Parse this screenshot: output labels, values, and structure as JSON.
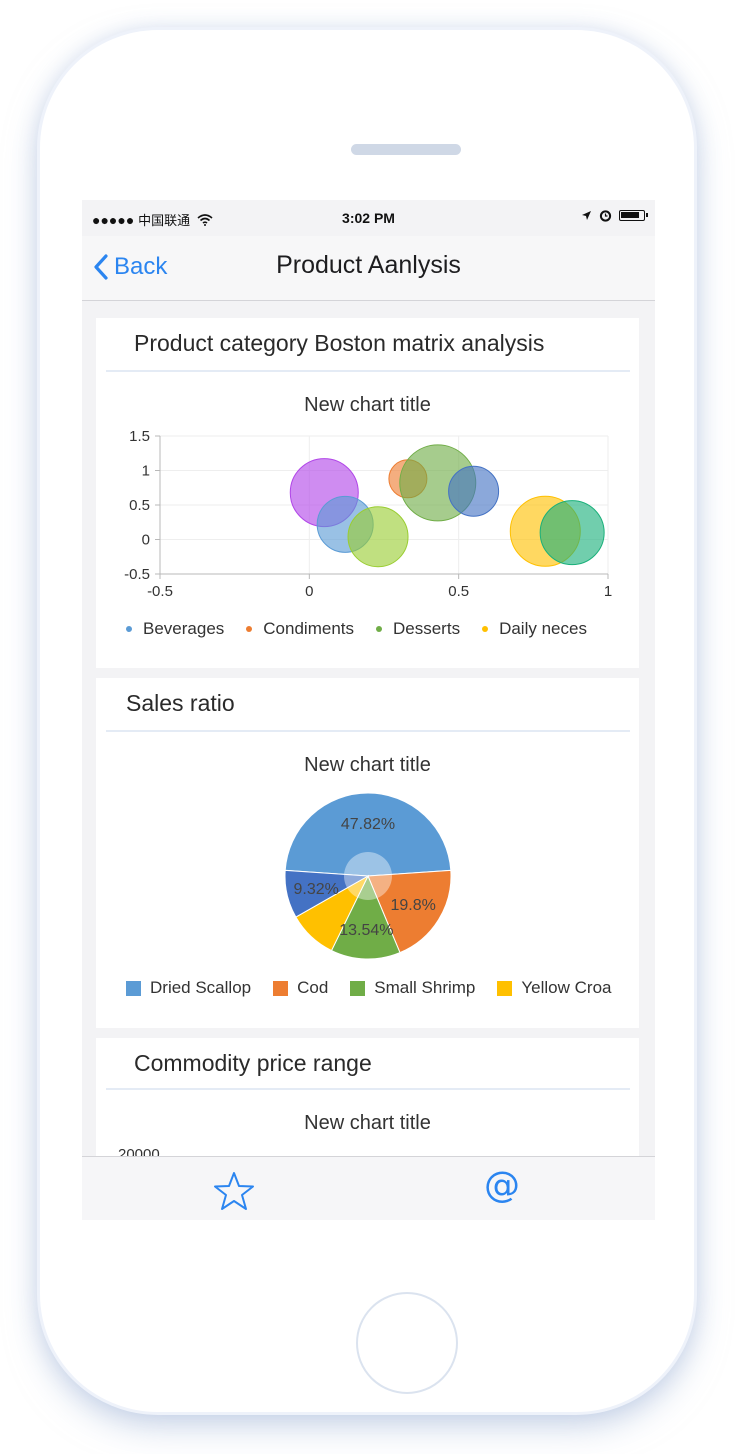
{
  "status_bar": {
    "signal": "●●●●●",
    "carrier": "中国联通",
    "time": "3:02 PM"
  },
  "nav": {
    "back_label": "Back",
    "title": "Product Aanlysis"
  },
  "sections": [
    {
      "title": "Product category Boston matrix analysis",
      "chart_title": "New chart title"
    },
    {
      "title": "Sales ratio",
      "chart_title": "New chart title"
    },
    {
      "title": "Commodity price range",
      "chart_title": "New chart title",
      "partial_tick": "20000"
    }
  ],
  "tab_bar": {
    "favorites_icon": "star-icon",
    "mention_icon": "at-icon",
    "mention_glyph": "@"
  },
  "colors": {
    "accent": "#2b85f0",
    "blue": "#5b9bd5",
    "orange": "#ed7d31",
    "green": "#70ad47",
    "yellow": "#ffc000",
    "purple": "#b146e8",
    "darkblue": "#4472c4",
    "teal": "#1ab07a"
  },
  "chart_data": [
    {
      "type": "scatter",
      "title": "New chart title",
      "xlim": [
        -0.5,
        1
      ],
      "ylim": [
        -0.5,
        1.5
      ],
      "xticks": [
        "-0.5",
        "0",
        "0.5",
        "1"
      ],
      "yticks": [
        "1.5",
        "1",
        "0.5",
        "0",
        "-0.5"
      ],
      "grid": true,
      "legend_position": "bottom",
      "legend": [
        "Beverages",
        "Condiments",
        "Desserts",
        "Daily neces"
      ],
      "points": [
        {
          "x": 0.05,
          "y": 0.68,
          "size": 34,
          "color": "#b146e8"
        },
        {
          "x": 0.12,
          "y": 0.22,
          "size": 28,
          "color": "#5b9bd5"
        },
        {
          "x": 0.23,
          "y": 0.04,
          "size": 30,
          "color": "#9acd32"
        },
        {
          "x": 0.33,
          "y": 0.88,
          "size": 19,
          "color": "#ed7d31"
        },
        {
          "x": 0.43,
          "y": 0.82,
          "size": 38,
          "color": "#70ad47"
        },
        {
          "x": 0.55,
          "y": 0.7,
          "size": 25,
          "color": "#4472c4"
        },
        {
          "x": 0.79,
          "y": 0.12,
          "size": 35,
          "color": "#ffc000"
        },
        {
          "x": 0.88,
          "y": 0.1,
          "size": 32,
          "color": "#1ab07a"
        }
      ]
    },
    {
      "type": "pie",
      "title": "New chart title",
      "legend_position": "bottom",
      "slices": [
        {
          "name": "Dried Scallop",
          "value": 47.82,
          "label": "47.82%",
          "color": "#5b9bd5"
        },
        {
          "name": "Cod",
          "value": 19.8,
          "label": "19.8%",
          "color": "#ed7d31"
        },
        {
          "name": "Small Shrimp",
          "value": 13.54,
          "label": "13.54%",
          "color": "#70ad47"
        },
        {
          "name": "Yellow Croa",
          "value": 9.52,
          "label": "",
          "color": "#ffc000"
        },
        {
          "name": "",
          "value": 9.32,
          "label": "9.32%",
          "color": "#4472c4"
        }
      ]
    }
  ]
}
